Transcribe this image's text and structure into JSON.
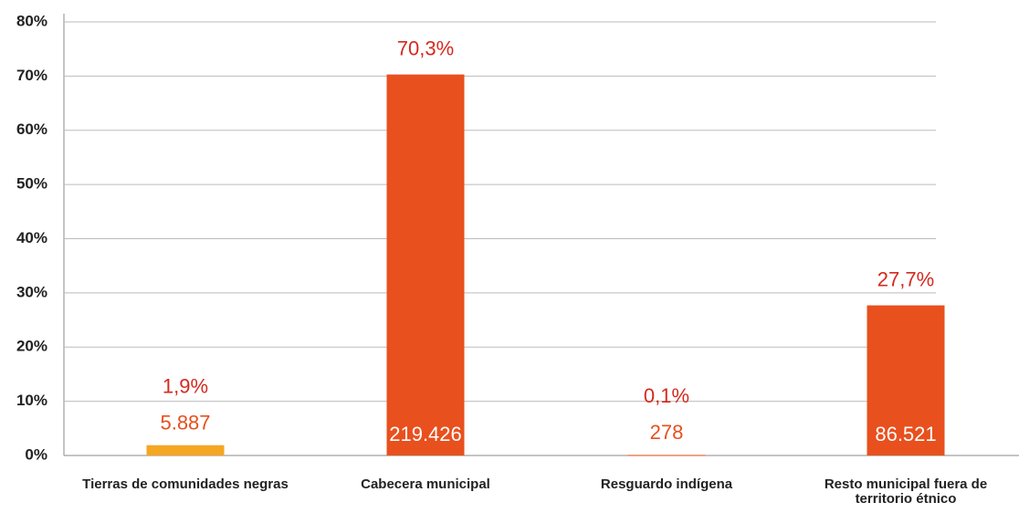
{
  "chart_data": {
    "type": "bar",
    "categories": [
      "Tierras de comunidades negras",
      "Cabecera municipal",
      "Resguardo indígena",
      "Resto municipal fuera de territorio étnico"
    ],
    "values": [
      1.9,
      70.3,
      0.1,
      27.7
    ],
    "value_labels": [
      "1,9%",
      "70,3%",
      "0,1%",
      "27,7%"
    ],
    "counts": [
      5887,
      219426,
      278,
      86521
    ],
    "count_labels": [
      "5.887",
      "219.426",
      "278",
      "86.521"
    ],
    "colors": [
      "#f5a623",
      "#e8501e",
      "#e8501e",
      "#e8501e"
    ],
    "ylim": [
      0,
      80
    ],
    "yticks": [
      {
        "value": 0,
        "label": "0%"
      },
      {
        "value": 10,
        "label": "10%"
      },
      {
        "value": 20,
        "label": "20%"
      },
      {
        "value": 30,
        "label": "30%"
      },
      {
        "value": 40,
        "label": "40%"
      },
      {
        "value": 50,
        "label": "50%"
      },
      {
        "value": 60,
        "label": "60%"
      },
      {
        "value": 70,
        "label": "70%"
      },
      {
        "value": 80,
        "label": "80%"
      }
    ],
    "grid": true
  }
}
